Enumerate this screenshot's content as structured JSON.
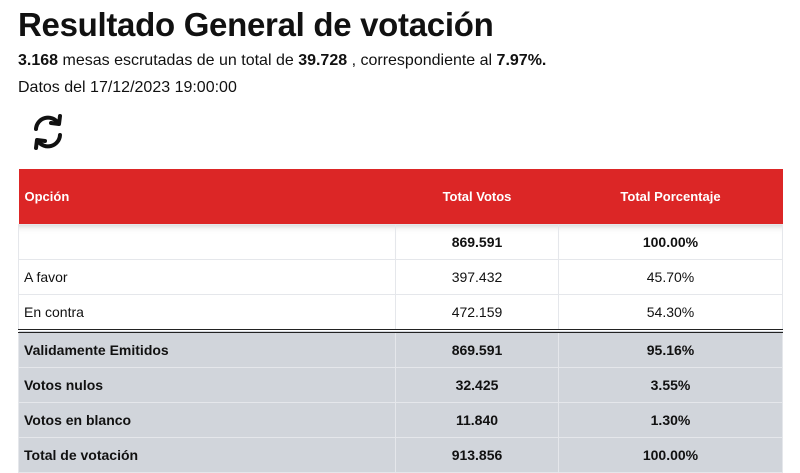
{
  "title": "Resultado General de votación",
  "summary": {
    "mesas": "3.168",
    "text1": " mesas escrutadas de un total de ",
    "total": "39.728",
    "text2": " , correspondiente al ",
    "pct": "7.97%."
  },
  "date_line": "Datos del 17/12/2023 19:00:00",
  "refresh_icon": "refresh-icon",
  "table": {
    "headers": [
      "Opción",
      "Total Votos",
      "Total Porcentaje"
    ],
    "rows": [
      {
        "label": "",
        "votes": "869.591",
        "pct": "100.00%"
      },
      {
        "label": "A favor",
        "votes": "397.432",
        "pct": "45.70%"
      },
      {
        "label": "En contra",
        "votes": "472.159",
        "pct": "54.30%"
      }
    ],
    "summary_rows": [
      {
        "label": "Validamente Emitidos",
        "votes": "869.591",
        "pct": "95.16%"
      },
      {
        "label": "Votos nulos",
        "votes": "32.425",
        "pct": "3.55%"
      },
      {
        "label": "Votos en blanco",
        "votes": "11.840",
        "pct": "1.30%"
      },
      {
        "label": "Total de votación",
        "votes": "913.856",
        "pct": "100.00%"
      }
    ]
  },
  "colors": {
    "header": "#dc2626",
    "summary_bg": "#d1d5db"
  }
}
